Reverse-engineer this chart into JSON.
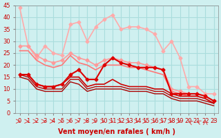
{
  "background_color": "#cff0f0",
  "grid_color": "#aadddd",
  "xlabel": "Vent moyen/en rafales ( km/h )",
  "xlabel_color": "#cc0000",
  "ylabel_color": "#cc0000",
  "xlim": [
    -0.5,
    23.5
  ],
  "ylim": [
    0,
    45
  ],
  "yticks": [
    0,
    5,
    10,
    15,
    20,
    25,
    30,
    35,
    40,
    45
  ],
  "xticks": [
    0,
    1,
    2,
    3,
    4,
    5,
    6,
    7,
    8,
    9,
    10,
    11,
    12,
    13,
    14,
    15,
    16,
    17,
    18,
    19,
    20,
    21,
    22,
    23
  ],
  "series": [
    {
      "x": [
        0,
        1,
        2,
        3,
        4,
        5,
        6,
        7,
        8,
        9,
        10,
        11,
        12,
        13,
        14,
        15,
        16,
        17,
        18,
        19,
        20,
        21,
        22,
        23
      ],
      "y": [
        44,
        28,
        23,
        28,
        25,
        24,
        37,
        38,
        30,
        36,
        39,
        41,
        35,
        36,
        36,
        35,
        33,
        26,
        30,
        23,
        11,
        11,
        8,
        8
      ],
      "color": "#ffaaaa",
      "lw": 1.2,
      "marker": "D",
      "markersize": 2.5,
      "zorder": 2
    },
    {
      "x": [
        0,
        1,
        2,
        3,
        4,
        5,
        6,
        7,
        8,
        9,
        10,
        11,
        12,
        13,
        14,
        15,
        16,
        17,
        18,
        19,
        20,
        21,
        22,
        23
      ],
      "y": [
        28,
        28,
        24,
        22,
        21,
        22,
        25,
        23,
        22,
        20,
        22,
        23,
        22,
        21,
        21,
        20,
        19,
        18,
        10,
        9,
        8,
        8,
        7,
        5
      ],
      "color": "#ff9999",
      "lw": 1.2,
      "marker": "D",
      "markersize": 2.5,
      "zorder": 3
    },
    {
      "x": [
        0,
        1,
        2,
        3,
        4,
        5,
        6,
        7,
        8,
        9,
        10,
        11,
        12,
        13,
        14,
        15,
        16,
        17,
        18,
        19,
        20,
        21,
        22,
        23
      ],
      "y": [
        26,
        26,
        22,
        20,
        19,
        20,
        24,
        21,
        20,
        18,
        20,
        20,
        20,
        19,
        19,
        18,
        17,
        16,
        9,
        8,
        7,
        7,
        6,
        4
      ],
      "color": "#ff7777",
      "lw": 1.2,
      "marker": "",
      "markersize": 0,
      "zorder": 3
    },
    {
      "x": [
        0,
        1,
        2,
        3,
        4,
        5,
        6,
        7,
        8,
        9,
        10,
        11,
        12,
        13,
        14,
        15,
        16,
        17,
        18,
        19,
        20,
        21,
        22,
        23
      ],
      "y": [
        16,
        16,
        12,
        11,
        11,
        12,
        16,
        18,
        14,
        14,
        20,
        23,
        21,
        20,
        19,
        19,
        19,
        18,
        8,
        8,
        8,
        8,
        7,
        5
      ],
      "color": "#dd0000",
      "lw": 1.5,
      "marker": "D",
      "markersize": 2.5,
      "zorder": 4
    },
    {
      "x": [
        0,
        1,
        2,
        3,
        4,
        5,
        6,
        7,
        8,
        9,
        10,
        11,
        12,
        13,
        14,
        15,
        16,
        17,
        18,
        19,
        20,
        21,
        22,
        23
      ],
      "y": [
        16,
        16,
        12,
        11,
        11,
        12,
        15,
        15,
        11,
        12,
        12,
        14,
        12,
        11,
        11,
        11,
        10,
        10,
        8,
        7,
        7,
        7,
        6,
        4
      ],
      "color": "#cc0000",
      "lw": 1.2,
      "marker": "",
      "markersize": 0,
      "zorder": 3
    },
    {
      "x": [
        0,
        1,
        2,
        3,
        4,
        5,
        6,
        7,
        8,
        9,
        10,
        11,
        12,
        13,
        14,
        15,
        16,
        17,
        18,
        19,
        20,
        21,
        22,
        23
      ],
      "y": [
        16,
        15,
        11,
        10,
        10,
        10,
        14,
        14,
        10,
        11,
        11,
        11,
        11,
        10,
        10,
        10,
        9,
        9,
        7,
        6,
        6,
        6,
        5,
        4
      ],
      "color": "#bb0000",
      "lw": 1.0,
      "marker": "",
      "markersize": 0,
      "zorder": 3
    },
    {
      "x": [
        0,
        1,
        2,
        3,
        4,
        5,
        6,
        7,
        8,
        9,
        10,
        11,
        12,
        13,
        14,
        15,
        16,
        17,
        18,
        19,
        20,
        21,
        22,
        23
      ],
      "y": [
        15,
        14,
        10,
        9,
        9,
        9,
        13,
        12,
        9,
        10,
        10,
        10,
        10,
        9,
        9,
        9,
        8,
        8,
        6,
        5,
        5,
        5,
        4,
        3
      ],
      "color": "#aa0000",
      "lw": 1.0,
      "marker": "",
      "markersize": 0,
      "zorder": 3
    }
  ],
  "tick_fontsize": 6,
  "label_fontsize": 7
}
